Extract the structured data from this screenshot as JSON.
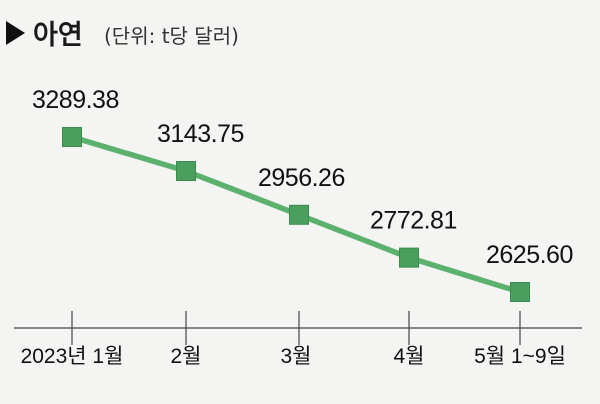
{
  "header": {
    "title": "아연",
    "unit": "(단위: t당 달러)",
    "marker_color": "#111111"
  },
  "chart_data": {
    "type": "line",
    "title": "아연",
    "unit": "(단위: t당 달러)",
    "categories": [
      "2023년 1월",
      "2월",
      "3월",
      "4월",
      "5월 1~9일"
    ],
    "series": [
      {
        "values": [
          3289.38,
          3143.75,
          2956.26,
          2772.81,
          2625.6
        ],
        "labels": [
          "3289.38",
          "3143.75",
          "2956.26",
          "2772.81",
          "2625.60"
        ]
      }
    ],
    "ylim": [
      2500,
      3400
    ],
    "grid": false,
    "legend": "none",
    "line_color": "#5cb16e",
    "marker_color": "#4a9f5e",
    "background": "#f4f4f3"
  }
}
